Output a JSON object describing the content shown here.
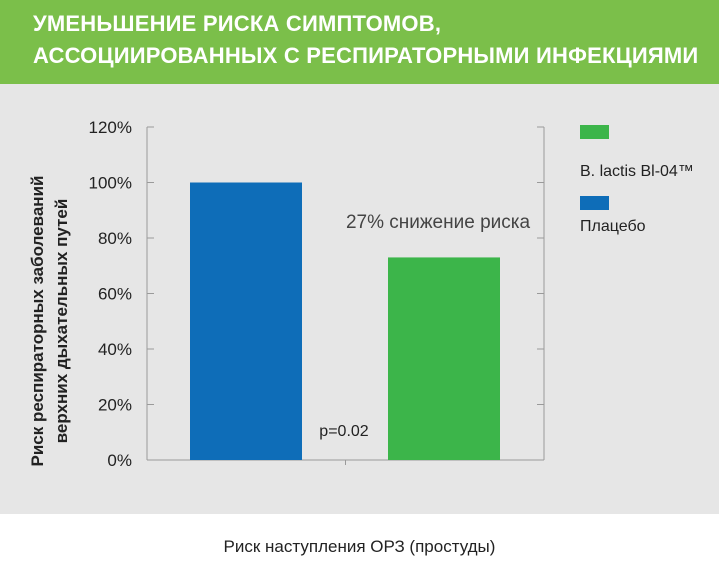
{
  "header": {
    "title_line1": "УМЕНЬШЕНИЕ РИСКА СИМПТОМОВ,",
    "title_line2": "АССОЦИИРОВАННЫХ С РЕСПИРАТОРНЫМИ ИНФЕКЦИЯМИ"
  },
  "colors": {
    "header_bg": "#7bbf4a",
    "panel_bg": "#e6e6e6",
    "placebo": "#0e6db8",
    "probiotic": "#3cb54a"
  },
  "chart_data": {
    "type": "bar",
    "categories": [
      "Плацебо",
      "B. lactis Bl-04™"
    ],
    "values": [
      100,
      73
    ],
    "ylabel_line1": "Риск респираторных заболеваний",
    "ylabel_line2": "верхних дыхательных путей",
    "xlabel": "Риск наступления ОРЗ (простуды)",
    "ylim": [
      0,
      120
    ],
    "yticks": [
      0,
      20,
      40,
      60,
      80,
      100,
      120
    ],
    "ytick_labels": [
      "0%",
      "20%",
      "40%",
      "60%",
      "80%",
      "100%",
      "120%"
    ],
    "legend": [
      {
        "label": "B. lactis Bl-04™",
        "color": "#3cb54a"
      },
      {
        "label": "Плацебо",
        "color": "#0e6db8"
      }
    ],
    "legend_position": "right",
    "annotations": {
      "reduction": "27% снижение риска",
      "pvalue": "p=0.02"
    },
    "grid": false
  }
}
